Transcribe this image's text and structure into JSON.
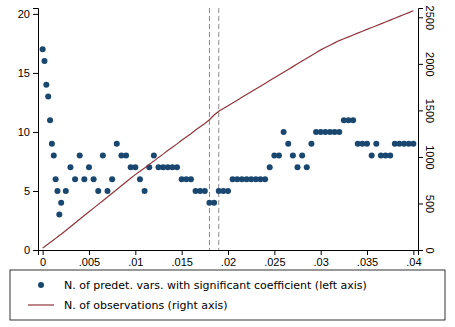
{
  "chart_data": {
    "type": "scatter",
    "x": [
      0,
      0.0002,
      0.0004,
      0.0006,
      0.0008,
      0.001,
      0.0012,
      0.0014,
      0.0016,
      0.0018,
      0.002,
      0.0025,
      0.003,
      0.0035,
      0.004,
      0.0045,
      0.005,
      0.0055,
      0.006,
      0.0065,
      0.007,
      0.0075,
      0.008,
      0.0085,
      0.009,
      0.0095,
      0.01,
      0.0105,
      0.011,
      0.0115,
      0.012,
      0.0125,
      0.013,
      0.0135,
      0.014,
      0.0145,
      0.015,
      0.0155,
      0.016,
      0.0165,
      0.017,
      0.0175,
      0.018,
      0.0185,
      0.019,
      0.0195,
      0.02,
      0.0205,
      0.021,
      0.0215,
      0.022,
      0.0225,
      0.023,
      0.0235,
      0.024,
      0.0245,
      0.025,
      0.0255,
      0.026,
      0.0265,
      0.027,
      0.0275,
      0.028,
      0.0285,
      0.029,
      0.0295,
      0.03,
      0.0305,
      0.031,
      0.0315,
      0.032,
      0.0325,
      0.033,
      0.0335,
      0.034,
      0.0345,
      0.035,
      0.0355,
      0.036,
      0.0365,
      0.037,
      0.0375,
      0.038,
      0.0385,
      0.039,
      0.0395,
      0.04
    ],
    "series": [
      {
        "name": "N. of predet. vars. with significant coefficient (left axis)",
        "type": "scatter",
        "marker": "circle",
        "color": "#1a476f",
        "values": [
          17,
          16,
          14,
          13,
          11,
          9,
          8,
          6,
          5,
          3,
          4,
          5,
          7,
          6,
          8,
          6,
          7,
          6,
          5,
          8,
          5,
          6,
          9,
          8,
          8,
          7,
          7,
          6,
          5,
          7,
          8,
          7,
          7,
          7,
          7,
          7,
          6,
          6,
          6,
          5,
          5,
          5,
          4,
          4,
          5,
          5,
          5,
          6,
          6,
          6,
          6,
          6,
          6,
          6,
          6,
          7,
          8,
          8,
          10,
          9,
          8,
          7,
          8,
          7,
          9,
          10,
          10,
          10,
          10,
          10,
          10,
          11,
          11,
          11,
          9,
          9,
          9,
          8,
          9,
          8,
          8,
          8,
          9,
          9,
          9,
          9,
          9
        ]
      },
      {
        "name": "N. of observations (right axis)",
        "type": "line",
        "line_style": "solid",
        "color": "#90353b",
        "axis": "y2",
        "values": [
          20,
          35,
          50,
          65,
          80,
          95,
          110,
          125,
          140,
          155,
          170,
          210,
          250,
          290,
          330,
          370,
          410,
          450,
          490,
          530,
          570,
          610,
          650,
          690,
          730,
          770,
          810,
          845,
          880,
          920,
          955,
          995,
          1030,
          1070,
          1105,
          1140,
          1180,
          1215,
          1250,
          1290,
          1325,
          1360,
          1400,
          1450,
          1490,
          1520,
          1550,
          1580,
          1610,
          1640,
          1670,
          1700,
          1730,
          1760,
          1790,
          1820,
          1850,
          1880,
          1910,
          1940,
          1970,
          2000,
          2030,
          2060,
          2090,
          2120,
          2150,
          2175,
          2200,
          2225,
          2250,
          2270,
          2290,
          2310,
          2330,
          2350,
          2370,
          2390,
          2410,
          2430,
          2450,
          2470,
          2490,
          2510,
          2530,
          2550,
          2570
        ]
      }
    ],
    "vlines": [
      0.018,
      0.019
    ],
    "xlim": [
      -0.0005,
      0.0405
    ],
    "xticks": [
      0,
      {
        "value": 0.005,
        "label": ".005"
      },
      {
        "value": 0.01,
        "label": ".01"
      },
      {
        "value": 0.015,
        "label": ".015"
      },
      {
        "value": 0.02,
        "label": ".02"
      },
      {
        "value": 0.025,
        "label": ".025"
      },
      {
        "value": 0.03,
        "label": ".03"
      },
      {
        "value": 0.035,
        "label": ".035"
      },
      {
        "value": 0.04,
        "label": ".04"
      }
    ],
    "ylim": [
      0,
      20.5
    ],
    "yticks": [
      0,
      5,
      10,
      15,
      20
    ],
    "y2lim": [
      0,
      2600
    ],
    "y2ticks": [
      0,
      500,
      1000,
      1500,
      2000,
      2500
    ],
    "grid": false,
    "legend": "bottom"
  }
}
